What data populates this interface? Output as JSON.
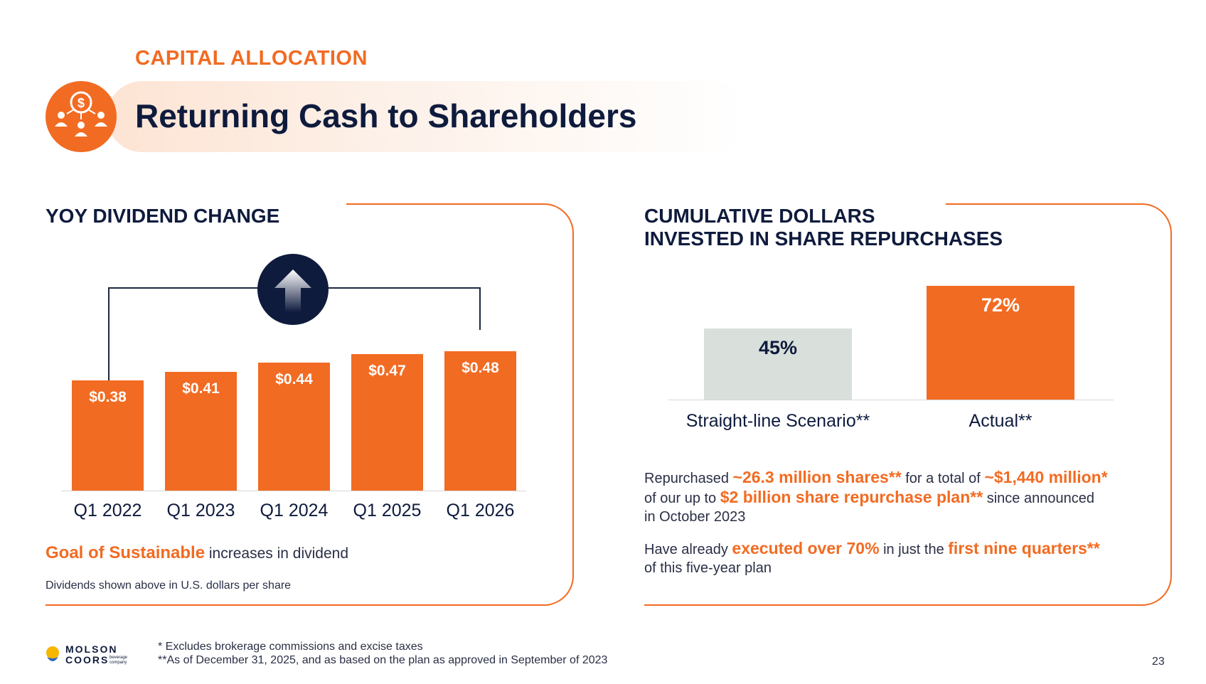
{
  "header": {
    "kicker": "CAPITAL ALLOCATION",
    "title": "Returning Cash to Shareholders",
    "icon": "cash-to-people-icon"
  },
  "dividend_section": {
    "title": "YOY DIVIDEND CHANGE",
    "arrow_icon": "up-arrow-icon",
    "goal_highlight": "Goal of Sustainable",
    "goal_rest": "increases in dividend",
    "note": "Dividends shown above in U.S. dollars per share"
  },
  "repurchase_section": {
    "title_line1": "CUMULATIVE DOLLARS",
    "title_line2": "INVESTED IN SHARE REPURCHASES",
    "text1_a": "Repurchased",
    "text1_b": "~26.3 million shares**",
    "text1_c": "for a total of",
    "text1_d": "~$1,440 million*",
    "text1_e": "of our up to",
    "text1_f": "$2 billion share repurchase plan**",
    "text1_g": "since announced",
    "text1_h": "in October 2023",
    "text2_a": "Have already",
    "text2_b": "executed over 70%",
    "text2_c": "in just the",
    "text2_d": "first nine quarters**",
    "text2_e": "of this five-year plan"
  },
  "chart_data": [
    {
      "type": "bar",
      "title": "YOY DIVIDEND CHANGE",
      "categories": [
        "Q1 2022",
        "Q1 2023",
        "Q1 2024",
        "Q1 2025",
        "Q1 2026"
      ],
      "values": [
        0.38,
        0.41,
        0.44,
        0.47,
        0.48
      ],
      "labels": [
        "$0.38",
        "$0.41",
        "$0.44",
        "$0.47",
        "$0.48"
      ],
      "ylabel": "U.S. dollars per share",
      "color": "#f26b22"
    },
    {
      "type": "bar",
      "title": "CUMULATIVE DOLLARS INVESTED IN SHARE REPURCHASES",
      "categories": [
        "Straight-line Scenario**",
        "Actual**"
      ],
      "values": [
        45,
        72
      ],
      "labels": [
        "45%",
        "72%"
      ],
      "colors": [
        "#d9dfdb",
        "#f26b22"
      ],
      "label_colors": [
        "#0f1b3d",
        "#ffffff"
      ]
    }
  ],
  "footer": {
    "brand_line1": "MOLSON",
    "brand_line2": "COORS",
    "brand_small1": "beverage",
    "brand_small2": "company",
    "footnote1": "* Excludes brokerage commissions and excise taxes",
    "footnote2": "**As of December 31, 2025, and as based on the plan as approved in September of 2023",
    "page_number": "23"
  },
  "colors": {
    "accent": "#f26b22",
    "navy": "#0f1b3d",
    "grey_bar": "#d9dfdb"
  }
}
